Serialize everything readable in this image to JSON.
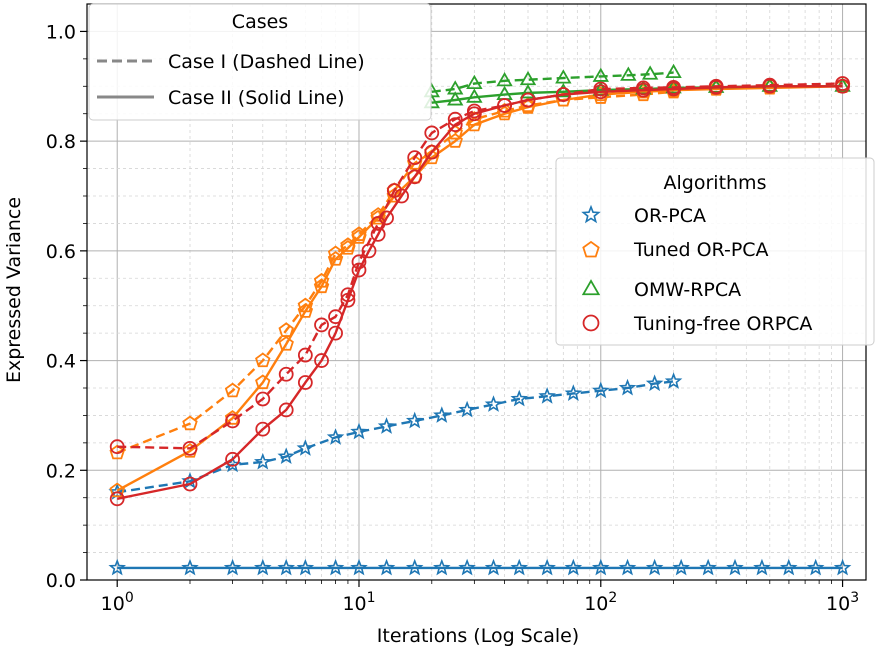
{
  "chart_data": {
    "type": "line",
    "xscale": "log",
    "xlabel": "Iterations (Log Scale)",
    "ylabel": "Expressed Variance",
    "xlim": [
      0.75,
      1250
    ],
    "ylim": [
      0.0,
      1.05
    ],
    "xticks": [
      {
        "value": 1,
        "base": "10",
        "exp": "0"
      },
      {
        "value": 10,
        "base": "10",
        "exp": "1"
      },
      {
        "value": 100,
        "base": "10",
        "exp": "2"
      },
      {
        "value": 1000,
        "base": "10",
        "exp": "3"
      }
    ],
    "yticks": [
      {
        "value": 0.0,
        "label": "0.0"
      },
      {
        "value": 0.2,
        "label": "0.2"
      },
      {
        "value": 0.4,
        "label": "0.4"
      },
      {
        "value": 0.6,
        "label": "0.6"
      },
      {
        "value": 0.8,
        "label": "0.8"
      },
      {
        "value": 1.0,
        "label": "1.0"
      }
    ],
    "grid": true,
    "legend_cases": {
      "title": "Cases",
      "placement": "top-left",
      "entries": [
        {
          "label": "Case I (Dashed Line)",
          "style": "dashed"
        },
        {
          "label": "Case II (Solid Line)",
          "style": "solid"
        }
      ]
    },
    "legend_algorithms": {
      "title": "Algorithms",
      "placement": "center-right",
      "entries": [
        {
          "label": "OR-PCA",
          "color": "#1f77b4",
          "marker": "star"
        },
        {
          "label": "Tuned OR-PCA",
          "color": "#ff7f0e",
          "marker": "pentagon"
        },
        {
          "label": "OMW-RPCA",
          "color": "#2ca02c",
          "marker": "triangle"
        },
        {
          "label": "Tuning-free ORPCA",
          "color": "#d62728",
          "marker": "circle"
        }
      ]
    },
    "series": [
      {
        "name": "OR-PCA",
        "case": "Case II",
        "style": "solid",
        "color": "#1f77b4",
        "marker": "star",
        "x": [
          1,
          2,
          3,
          4,
          5,
          6,
          8,
          10,
          13,
          17,
          22,
          28,
          36,
          46,
          60,
          77,
          100,
          129,
          167,
          215,
          278,
          359,
          464,
          599,
          774,
          1000
        ],
        "y": [
          0.022,
          0.022,
          0.022,
          0.022,
          0.022,
          0.022,
          0.022,
          0.022,
          0.022,
          0.022,
          0.022,
          0.022,
          0.022,
          0.022,
          0.022,
          0.022,
          0.022,
          0.022,
          0.022,
          0.022,
          0.022,
          0.022,
          0.022,
          0.022,
          0.022,
          0.022
        ]
      },
      {
        "name": "OR-PCA",
        "case": "Case I",
        "style": "dashed",
        "color": "#1f77b4",
        "marker": "star",
        "x": [
          1,
          2,
          3,
          4,
          5,
          6,
          8,
          10,
          13,
          17,
          22,
          28,
          36,
          46,
          60,
          77,
          100,
          129,
          167,
          200
        ],
        "y": [
          0.16,
          0.18,
          0.21,
          0.215,
          0.225,
          0.24,
          0.26,
          0.27,
          0.28,
          0.29,
          0.3,
          0.31,
          0.32,
          0.33,
          0.335,
          0.34,
          0.345,
          0.35,
          0.358,
          0.362
        ]
      },
      {
        "name": "Tuned OR-PCA",
        "case": "Case II",
        "style": "solid",
        "color": "#ff7f0e",
        "marker": "pentagon",
        "x": [
          1,
          2,
          3,
          4,
          5,
          6,
          7,
          8,
          9,
          10,
          12,
          14,
          17,
          20,
          25,
          30,
          40,
          50,
          70,
          100,
          150,
          200,
          300,
          500,
          1000
        ],
        "y": [
          0.163,
          0.235,
          0.295,
          0.36,
          0.43,
          0.49,
          0.535,
          0.585,
          0.605,
          0.625,
          0.66,
          0.7,
          0.735,
          0.77,
          0.8,
          0.83,
          0.85,
          0.862,
          0.875,
          0.885,
          0.89,
          0.893,
          0.895,
          0.897,
          0.9
        ]
      },
      {
        "name": "Tuned OR-PCA",
        "case": "Case I",
        "style": "dashed",
        "color": "#ff7f0e",
        "marker": "pentagon",
        "x": [
          1,
          2,
          3,
          4,
          5,
          6,
          7,
          8,
          9,
          10,
          12,
          14,
          17,
          20,
          25,
          30,
          40,
          50,
          70,
          100,
          150,
          200
        ],
        "y": [
          0.232,
          0.285,
          0.345,
          0.4,
          0.455,
          0.5,
          0.545,
          0.595,
          0.61,
          0.63,
          0.665,
          0.71,
          0.76,
          0.78,
          0.815,
          0.84,
          0.855,
          0.865,
          0.875,
          0.88,
          0.885,
          0.89
        ]
      },
      {
        "name": "OMW-RPCA",
        "case": "Case II",
        "style": "solid",
        "color": "#2ca02c",
        "marker": "triangle",
        "x": [
          20,
          25,
          30,
          40,
          50,
          70,
          100,
          150,
          200,
          300,
          500,
          1000
        ],
        "y": [
          0.87,
          0.875,
          0.88,
          0.885,
          0.888,
          0.89,
          0.893,
          0.895,
          0.897,
          0.898,
          0.9,
          0.9
        ]
      },
      {
        "name": "OMW-RPCA",
        "case": "Case I",
        "style": "dashed",
        "color": "#2ca02c",
        "marker": "triangle",
        "x": [
          20,
          25,
          30,
          40,
          50,
          70,
          100,
          130,
          160,
          200
        ],
        "y": [
          0.89,
          0.895,
          0.905,
          0.91,
          0.912,
          0.915,
          0.918,
          0.92,
          0.922,
          0.925
        ]
      },
      {
        "name": "Tuning-free ORPCA",
        "case": "Case II",
        "style": "solid",
        "color": "#d62728",
        "marker": "circle",
        "x": [
          1,
          2,
          3,
          4,
          5,
          6,
          7,
          8,
          9,
          10,
          11,
          12,
          13,
          15,
          17,
          20,
          25,
          30,
          40,
          50,
          70,
          100,
          150,
          200,
          300,
          500,
          1000
        ],
        "y": [
          0.148,
          0.175,
          0.22,
          0.275,
          0.31,
          0.36,
          0.4,
          0.45,
          0.51,
          0.565,
          0.6,
          0.63,
          0.66,
          0.7,
          0.735,
          0.78,
          0.83,
          0.85,
          0.865,
          0.875,
          0.885,
          0.89,
          0.893,
          0.895,
          0.898,
          0.9,
          0.9
        ]
      },
      {
        "name": "Tuning-free ORPCA",
        "case": "Case I",
        "style": "dashed",
        "color": "#d62728",
        "marker": "circle",
        "x": [
          1,
          2,
          3,
          4,
          5,
          6,
          7,
          8,
          9,
          10,
          12,
          14,
          17,
          20,
          25,
          30,
          40,
          50,
          70,
          100,
          150,
          200,
          300,
          500,
          1000
        ],
        "y": [
          0.243,
          0.24,
          0.29,
          0.33,
          0.375,
          0.41,
          0.465,
          0.48,
          0.52,
          0.58,
          0.65,
          0.71,
          0.77,
          0.815,
          0.84,
          0.855,
          0.865,
          0.875,
          0.885,
          0.895,
          0.897,
          0.898,
          0.9,
          0.902,
          0.905
        ]
      }
    ]
  }
}
